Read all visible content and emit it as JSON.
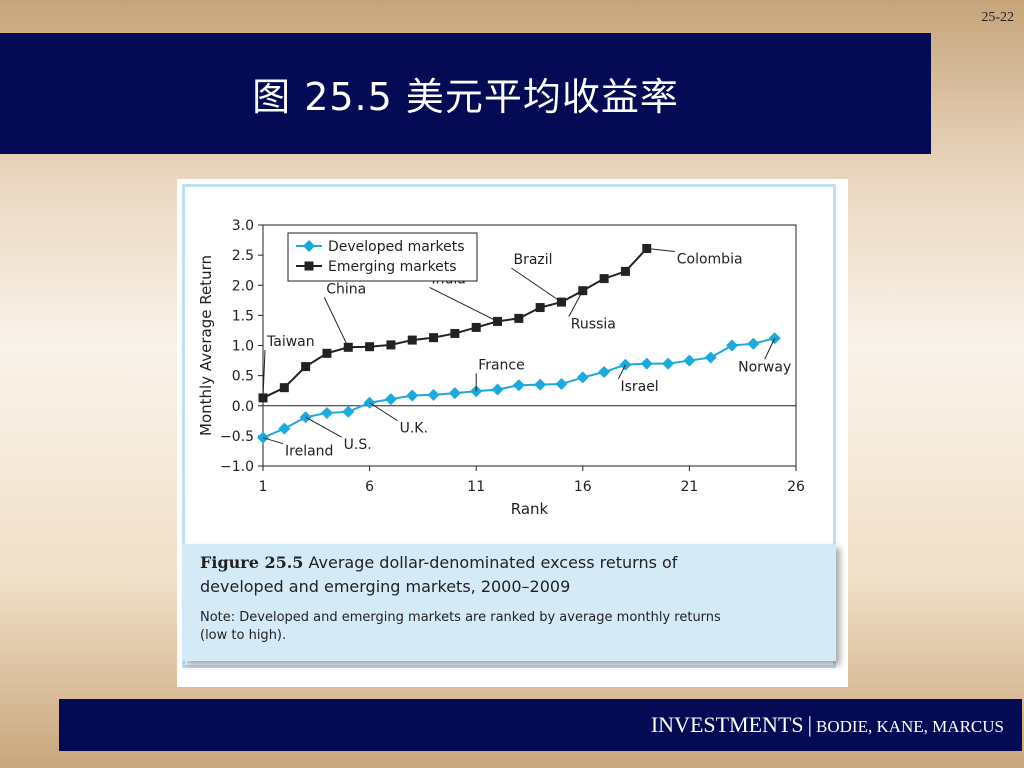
{
  "slide": {
    "number": "25-22",
    "title": "图 25.5 美元平均收益率"
  },
  "footer": {
    "main": "INVESTMENTS",
    "separator": "|",
    "authors": "BODIE, KANE, MARCUS"
  },
  "caption": {
    "figure_label": "Figure 25.5",
    "line1": "Average dollar-denominated excess returns of",
    "line2": "developed and emerging markets, 2000–2009",
    "note_line1": "Note: Developed and emerging markets are ranked by average monthly returns",
    "note_line2": "(low to high)."
  },
  "colors": {
    "developed": "#1ba9de",
    "emerging": "#222222",
    "title_bar": "#050a55"
  },
  "chart_data": {
    "type": "line",
    "title": "",
    "xlabel": "Rank",
    "ylabel": "Monthly Average Return",
    "xlim": [
      1,
      26
    ],
    "ylim": [
      -1.0,
      3.0
    ],
    "xticks": [
      1,
      6,
      11,
      16,
      21,
      26
    ],
    "yticks": [
      3.0,
      2.5,
      2.0,
      1.5,
      1.0,
      0.5,
      0.0,
      -0.5,
      -1.0
    ],
    "ytick_labels": [
      "3.0",
      "2.5",
      "2.0",
      "1.5",
      "1.0",
      "0.5",
      "0.0",
      "−0.5",
      "−1.0"
    ],
    "grid": false,
    "legend_position": "top-left",
    "series": [
      {
        "name": "Developed markets",
        "marker": "diamond",
        "x": [
          1,
          2,
          3,
          4,
          5,
          6,
          7,
          8,
          9,
          10,
          11,
          12,
          13,
          14,
          15,
          16,
          17,
          18,
          19,
          20,
          21,
          22,
          23,
          24,
          25
        ],
        "values": [
          -0.53,
          -0.38,
          -0.19,
          -0.12,
          -0.1,
          0.05,
          0.11,
          0.17,
          0.18,
          0.21,
          0.24,
          0.27,
          0.34,
          0.35,
          0.36,
          0.47,
          0.56,
          0.68,
          0.7,
          0.7,
          0.75,
          0.8,
          1.0,
          1.03,
          1.12
        ]
      },
      {
        "name": "Emerging markets",
        "marker": "square",
        "x": [
          1,
          2,
          3,
          4,
          5,
          6,
          7,
          8,
          9,
          10,
          11,
          12,
          13,
          14,
          15,
          16,
          17,
          18,
          19
        ],
        "values": [
          0.13,
          0.3,
          0.65,
          0.87,
          0.97,
          0.98,
          1.01,
          1.09,
          1.13,
          1.2,
          1.3,
          1.4,
          1.45,
          1.63,
          1.72,
          1.91,
          2.11,
          2.23,
          2.61
        ]
      }
    ],
    "annotations": [
      {
        "text": "Ireland",
        "series": "Developed markets",
        "x": 1
      },
      {
        "text": "U.S.",
        "series": "Developed markets",
        "x": 3
      },
      {
        "text": "U.K.",
        "series": "Developed markets",
        "x": 6
      },
      {
        "text": "France",
        "series": "Developed markets",
        "x": 11
      },
      {
        "text": "Israel",
        "series": "Developed markets",
        "x": 18
      },
      {
        "text": "Norway",
        "series": "Developed markets",
        "x": 25
      },
      {
        "text": "Taiwan",
        "series": "Emerging markets",
        "x": 1
      },
      {
        "text": "China",
        "series": "Emerging markets",
        "x": 5
      },
      {
        "text": "India",
        "series": "Emerging markets",
        "x": 12
      },
      {
        "text": "Brazil",
        "series": "Emerging markets",
        "x": 15
      },
      {
        "text": "Russia",
        "series": "Emerging markets",
        "x": 16
      },
      {
        "text": "Colombia",
        "series": "Emerging markets",
        "x": 19
      }
    ]
  }
}
